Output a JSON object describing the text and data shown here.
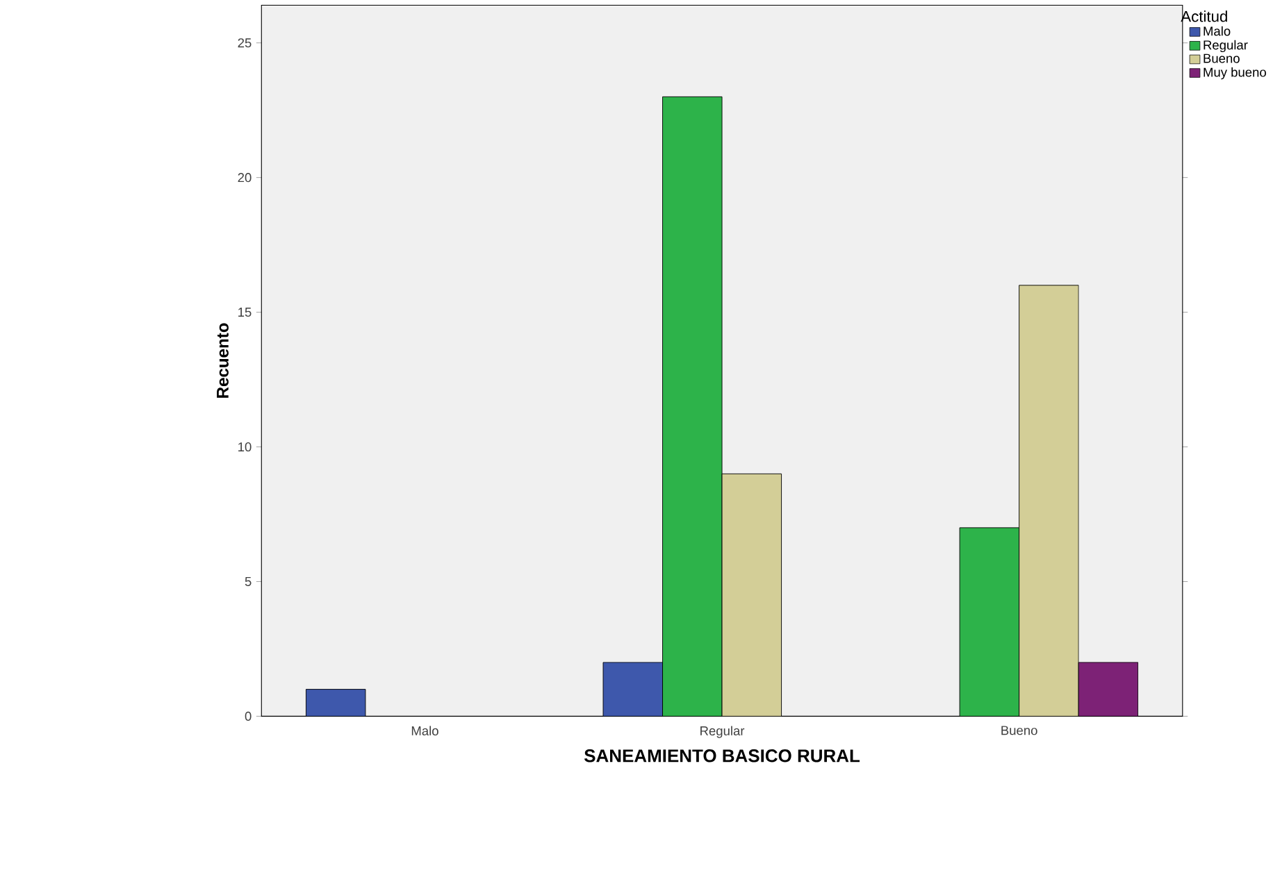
{
  "chart_data": {
    "type": "bar",
    "xlabel": "SANEAMIENTO BASICO RURAL",
    "ylabel": "Recuento",
    "legend_title": "Actitud",
    "legend": "top right",
    "categories": [
      "Malo",
      "Regular",
      "Bueno"
    ],
    "series": [
      {
        "name": "Malo",
        "color": "#3e58ac",
        "values": [
          1,
          2,
          null
        ]
      },
      {
        "name": "Regular",
        "color": "#2db34a",
        "values": [
          null,
          23,
          7
        ]
      },
      {
        "name": "Bueno",
        "color": "#d3ce97",
        "values": [
          null,
          9,
          16
        ]
      },
      {
        "name": "Muy bueno",
        "color": "#7d2276",
        "values": [
          null,
          null,
          2
        ]
      }
    ],
    "ylim": [
      0,
      26.4
    ],
    "yticks": [
      0,
      5,
      10,
      15,
      20,
      25
    ]
  }
}
